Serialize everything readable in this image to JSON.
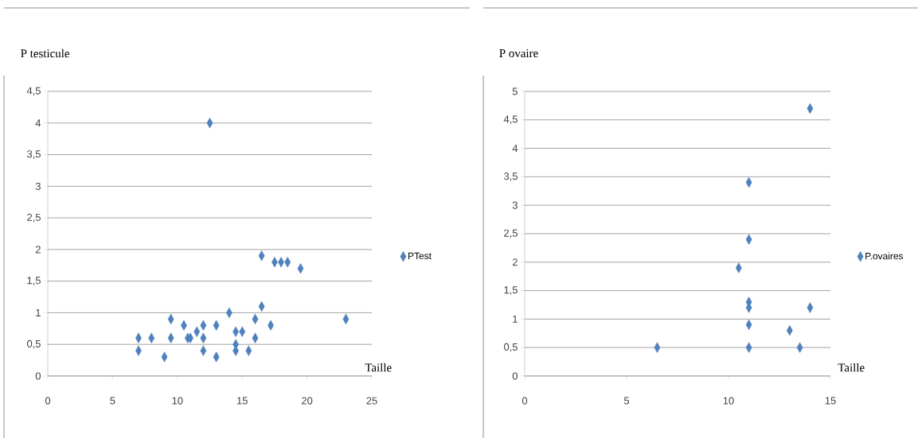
{
  "chart_data": [
    {
      "type": "scatter",
      "ylabel": "P testicule",
      "xlabel": "Taille",
      "marker": "diamond",
      "grid": "y",
      "legend": "right",
      "x": [
        7,
        7,
        8,
        9,
        9.5,
        9.5,
        10.5,
        10.8,
        11,
        11.5,
        12,
        12,
        12,
        12.5,
        13,
        13,
        14,
        14.5,
        14.5,
        14.5,
        15,
        15.5,
        16,
        16,
        16.5,
        16.5,
        17.2,
        17.5,
        18,
        18.5,
        19.5,
        23
      ],
      "series": [
        {
          "name": "PTest",
          "color": "#4f81bd",
          "values": [
            0.6,
            0.4,
            0.6,
            0.3,
            0.9,
            0.6,
            0.8,
            0.6,
            0.6,
            0.7,
            0.8,
            0.6,
            0.4,
            4,
            0.8,
            0.3,
            1,
            0.7,
            0.5,
            0.4,
            0.7,
            0.4,
            0.9,
            0.6,
            1.9,
            1.1,
            0.8,
            1.8,
            1.8,
            1.8,
            1.7,
            0.9
          ]
        }
      ],
      "xlim": [
        0,
        25
      ],
      "xticks": [
        0,
        5,
        10,
        15,
        20,
        25
      ],
      "ylim": [
        0,
        4.5
      ],
      "yticks": [
        0,
        {
          "value": 0.5,
          "label": "0,5"
        },
        1,
        {
          "value": 1.5,
          "label": "1,5"
        },
        2,
        {
          "value": 2.5,
          "label": "2,5"
        },
        3,
        {
          "value": 3.5,
          "label": "3,5"
        },
        4,
        {
          "value": 4.5,
          "label": "4,5"
        }
      ]
    },
    {
      "type": "scatter",
      "ylabel": "P ovaire",
      "xlabel": "Taille",
      "marker": "diamond",
      "grid": "y",
      "legend": "right",
      "x": [
        6.5,
        10.5,
        11,
        11,
        11,
        11,
        11,
        11,
        13,
        13.5,
        14,
        14
      ],
      "series": [
        {
          "name": "P.ovaires",
          "color": "#4f81bd",
          "values": [
            0.5,
            1.9,
            3.4,
            2.4,
            1.3,
            1.2,
            0.9,
            0.5,
            0.8,
            0.5,
            4.7,
            1.2
          ]
        }
      ],
      "xlim": [
        0,
        15
      ],
      "xticks": [
        0,
        5,
        10,
        15
      ],
      "ylim": [
        0,
        5
      ],
      "yticks": [
        0,
        {
          "value": 0.5,
          "label": "0,5"
        },
        1,
        {
          "value": 1.5,
          "label": "1,5"
        },
        2,
        {
          "value": 2.5,
          "label": "2,5"
        },
        3,
        {
          "value": 3.5,
          "label": "3,5"
        },
        4,
        {
          "value": 4.5,
          "label": "4,5"
        },
        5
      ]
    }
  ]
}
